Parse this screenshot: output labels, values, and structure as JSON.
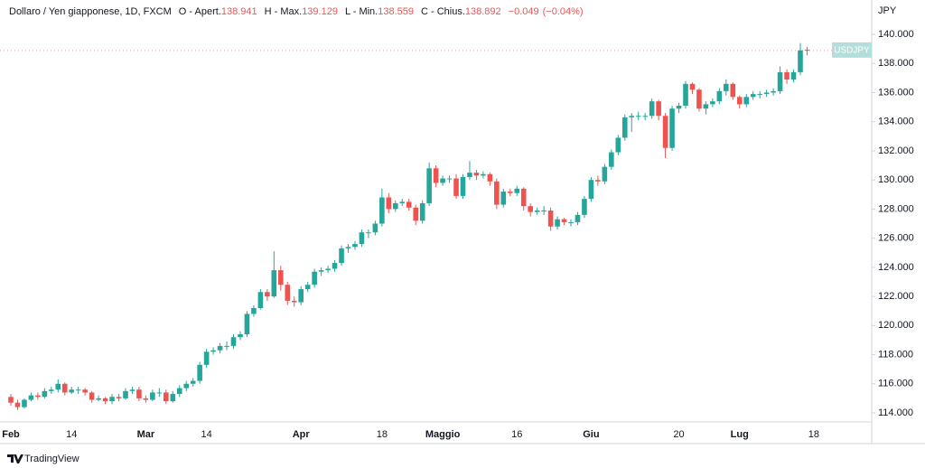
{
  "chart_data": {
    "type": "candlestick",
    "title": "Dollaro / Yen giapponese, 1D, FXCM",
    "ohlc": [
      {
        "name": "O - Apert.",
        "value": 138.941
      },
      {
        "name": "H - Max.",
        "value": 139.129
      },
      {
        "name": "L - Min.",
        "value": 138.559
      },
      {
        "name": "C - Chius.",
        "value": 138.892
      }
    ],
    "change": {
      "value": -0.049,
      "label": "−0.049"
    },
    "change_percent": {
      "value": -0.04,
      "label": "(−0.04%)"
    },
    "y_unit": "JPY",
    "symbol_label": "USDJPY",
    "brand": "TradingView",
    "up_color": "#26a69a",
    "down_color": "#ef5350",
    "categories": [
      "Feb",
      null,
      null,
      null,
      null,
      null,
      null,
      null,
      null,
      "14",
      null,
      null,
      null,
      null,
      null,
      null,
      null,
      null,
      null,
      null,
      "Mar",
      null,
      null,
      null,
      null,
      null,
      null,
      null,
      null,
      "14",
      null,
      null,
      null,
      null,
      null,
      null,
      null,
      null,
      null,
      null,
      null,
      null,
      null,
      "Apr",
      null,
      null,
      null,
      null,
      null,
      null,
      null,
      null,
      null,
      null,
      null,
      "18",
      null,
      null,
      null,
      null,
      null,
      null,
      null,
      null,
      "Maggio",
      null,
      null,
      null,
      null,
      null,
      null,
      null,
      null,
      null,
      null,
      "16",
      null,
      null,
      null,
      null,
      null,
      null,
      null,
      null,
      null,
      null,
      "Giu",
      null,
      null,
      null,
      null,
      null,
      null,
      null,
      null,
      null,
      null,
      null,
      null,
      "20",
      null,
      null,
      null,
      null,
      null,
      null,
      null,
      null,
      "Lug",
      null,
      null,
      null,
      null,
      null,
      null,
      null,
      null,
      null,
      null,
      "18"
    ],
    "open": [
      115.1,
      114.7,
      114.4,
      114.9,
      115.2,
      115.1,
      115.5,
      115.6,
      116.0,
      115.4,
      115.6,
      115.6,
      115.4,
      114.9,
      115.0,
      114.8,
      115.1,
      115.0,
      115.5,
      115.6,
      115.0,
      114.9,
      115.4,
      115.4,
      114.8,
      115.3,
      115.7,
      116.0,
      116.2,
      117.3,
      118.2,
      118.3,
      118.6,
      118.6,
      119.2,
      119.4,
      120.8,
      121.2,
      122.3,
      122.0,
      123.8,
      122.8,
      121.7,
      121.6,
      122.5,
      122.8,
      123.7,
      123.8,
      123.9,
      124.3,
      125.3,
      125.4,
      125.6,
      126.4,
      126.4,
      127.0,
      128.8,
      128.0,
      128.4,
      128.5,
      128.1,
      127.2,
      128.4,
      130.8,
      129.8,
      130.1,
      130.1,
      128.9,
      130.2,
      130.5,
      130.3,
      130.4,
      129.9,
      128.3,
      129.2,
      129.1,
      129.4,
      128.2,
      127.8,
      127.9,
      127.9,
      126.8,
      127.3,
      127.1,
      127.1,
      127.6,
      128.7,
      130.0,
      129.9,
      130.9,
      131.9,
      132.9,
      134.3,
      134.4,
      134.4,
      134.4,
      135.4,
      134.4,
      132.2,
      134.9,
      135.1,
      136.6,
      136.2,
      134.9,
      135.2,
      135.4,
      136.1,
      136.6,
      135.7,
      135.2,
      135.7,
      135.9,
      135.9,
      136.0,
      136.1,
      137.4,
      136.9,
      137.4,
      138.941,
      null
    ],
    "high": [
      115.3,
      114.9,
      115.0,
      115.4,
      115.4,
      115.7,
      115.8,
      116.3,
      116.1,
      115.8,
      115.8,
      115.7,
      115.5,
      115.2,
      115.1,
      115.3,
      115.3,
      115.7,
      115.8,
      115.8,
      115.2,
      115.6,
      115.7,
      115.6,
      115.5,
      115.9,
      116.2,
      116.4,
      117.5,
      118.4,
      118.5,
      118.8,
      118.9,
      119.4,
      119.6,
      121.0,
      121.4,
      122.5,
      122.5,
      125.1,
      124.1,
      123.0,
      122.0,
      122.7,
      123.0,
      123.9,
      124.0,
      124.1,
      124.5,
      125.5,
      125.6,
      125.8,
      126.6,
      126.6,
      127.2,
      129.4,
      129.1,
      128.6,
      128.7,
      128.7,
      128.3,
      128.6,
      131.2,
      131.0,
      130.3,
      130.3,
      130.4,
      130.4,
      131.3,
      130.7,
      130.6,
      130.5,
      130.1,
      129.4,
      129.4,
      129.6,
      129.5,
      128.4,
      128.1,
      128.2,
      128.1,
      127.5,
      127.4,
      127.3,
      127.8,
      128.9,
      130.2,
      130.3,
      131.1,
      132.1,
      133.1,
      134.5,
      134.6,
      134.7,
      134.6,
      135.6,
      135.5,
      134.6,
      135.1,
      135.3,
      136.8,
      136.7,
      136.3,
      135.4,
      135.6,
      136.3,
      136.9,
      136.7,
      135.8,
      135.9,
      136.1,
      136.1,
      136.2,
      136.3,
      137.8,
      137.6,
      137.6,
      139.4,
      139.129,
      null
    ],
    "low": [
      114.5,
      114.2,
      114.3,
      114.8,
      114.9,
      115.0,
      115.3,
      115.4,
      115.2,
      115.3,
      115.3,
      115.2,
      114.7,
      114.8,
      114.6,
      114.6,
      114.8,
      114.9,
      115.3,
      114.8,
      114.7,
      114.8,
      115.1,
      114.6,
      114.7,
      115.1,
      115.5,
      115.8,
      116.0,
      117.1,
      118.0,
      118.1,
      118.3,
      118.4,
      119.0,
      119.2,
      120.6,
      121.1,
      121.7,
      121.9,
      122.4,
      121.4,
      121.3,
      121.4,
      122.3,
      122.6,
      123.4,
      123.6,
      123.7,
      124.1,
      125.0,
      125.2,
      125.4,
      126.0,
      126.2,
      126.8,
      127.7,
      127.8,
      128.2,
      127.9,
      126.9,
      127.0,
      128.2,
      129.5,
      129.6,
      129.8,
      128.7,
      128.7,
      130.0,
      130.0,
      130.1,
      129.6,
      128.0,
      128.1,
      128.9,
      128.9,
      127.9,
      127.5,
      127.6,
      127.6,
      126.5,
      126.6,
      126.9,
      126.8,
      126.9,
      127.4,
      128.5,
      129.6,
      129.7,
      130.7,
      131.7,
      132.7,
      133.3,
      134.1,
      134.1,
      134.2,
      134.1,
      131.5,
      132.0,
      134.6,
      134.9,
      135.9,
      134.7,
      134.5,
      135.0,
      135.2,
      135.8,
      135.5,
      134.9,
      135.0,
      135.5,
      135.6,
      135.7,
      135.8,
      135.9,
      136.6,
      136.7,
      137.2,
      138.559,
      null
    ],
    "close": [
      114.7,
      114.4,
      114.9,
      115.2,
      115.1,
      115.5,
      115.6,
      116.0,
      115.4,
      115.6,
      115.6,
      115.4,
      114.9,
      115.0,
      114.8,
      115.1,
      115.0,
      115.5,
      115.6,
      115.0,
      114.9,
      115.4,
      115.4,
      114.8,
      115.3,
      115.7,
      116.0,
      116.2,
      117.3,
      118.2,
      118.3,
      118.6,
      118.6,
      119.2,
      119.4,
      120.8,
      121.2,
      122.3,
      122.0,
      123.8,
      122.8,
      121.7,
      121.6,
      122.5,
      122.8,
      123.7,
      123.8,
      123.9,
      124.3,
      125.3,
      125.4,
      125.6,
      126.4,
      126.4,
      127.0,
      128.8,
      128.0,
      128.4,
      128.5,
      128.1,
      127.2,
      128.4,
      130.8,
      129.8,
      130.1,
      130.1,
      128.9,
      130.2,
      130.5,
      130.3,
      130.4,
      129.9,
      128.3,
      129.2,
      129.1,
      129.4,
      128.2,
      127.8,
      127.9,
      127.9,
      126.8,
      127.3,
      127.1,
      127.1,
      127.6,
      128.7,
      130.0,
      129.9,
      130.9,
      131.9,
      132.9,
      134.3,
      134.4,
      134.4,
      134.4,
      135.4,
      134.4,
      132.2,
      134.9,
      135.1,
      136.6,
      136.2,
      134.9,
      135.2,
      135.4,
      136.1,
      136.6,
      135.7,
      135.2,
      135.7,
      135.9,
      135.9,
      136.0,
      136.1,
      137.4,
      136.9,
      137.4,
      138.9,
      138.892,
      null
    ],
    "ylim": [
      113.38,
      142.36
    ],
    "yticks": [
      {
        "value": 114,
        "label": "114.000"
      },
      {
        "value": 116,
        "label": "116.000"
      },
      {
        "value": 118,
        "label": "118.000"
      },
      {
        "value": 120,
        "label": "120.000"
      },
      {
        "value": 122,
        "label": "122.000"
      },
      {
        "value": 124,
        "label": "124.000"
      },
      {
        "value": 126,
        "label": "126.000"
      },
      {
        "value": 128,
        "label": "128.000"
      },
      {
        "value": 130,
        "label": "130.000"
      },
      {
        "value": 132,
        "label": "132.000"
      },
      {
        "value": 134,
        "label": "134.000"
      },
      {
        "value": 136,
        "label": "136.000"
      },
      {
        "value": 138,
        "label": "138.000"
      },
      {
        "value": 140,
        "label": "140.000"
      }
    ]
  }
}
